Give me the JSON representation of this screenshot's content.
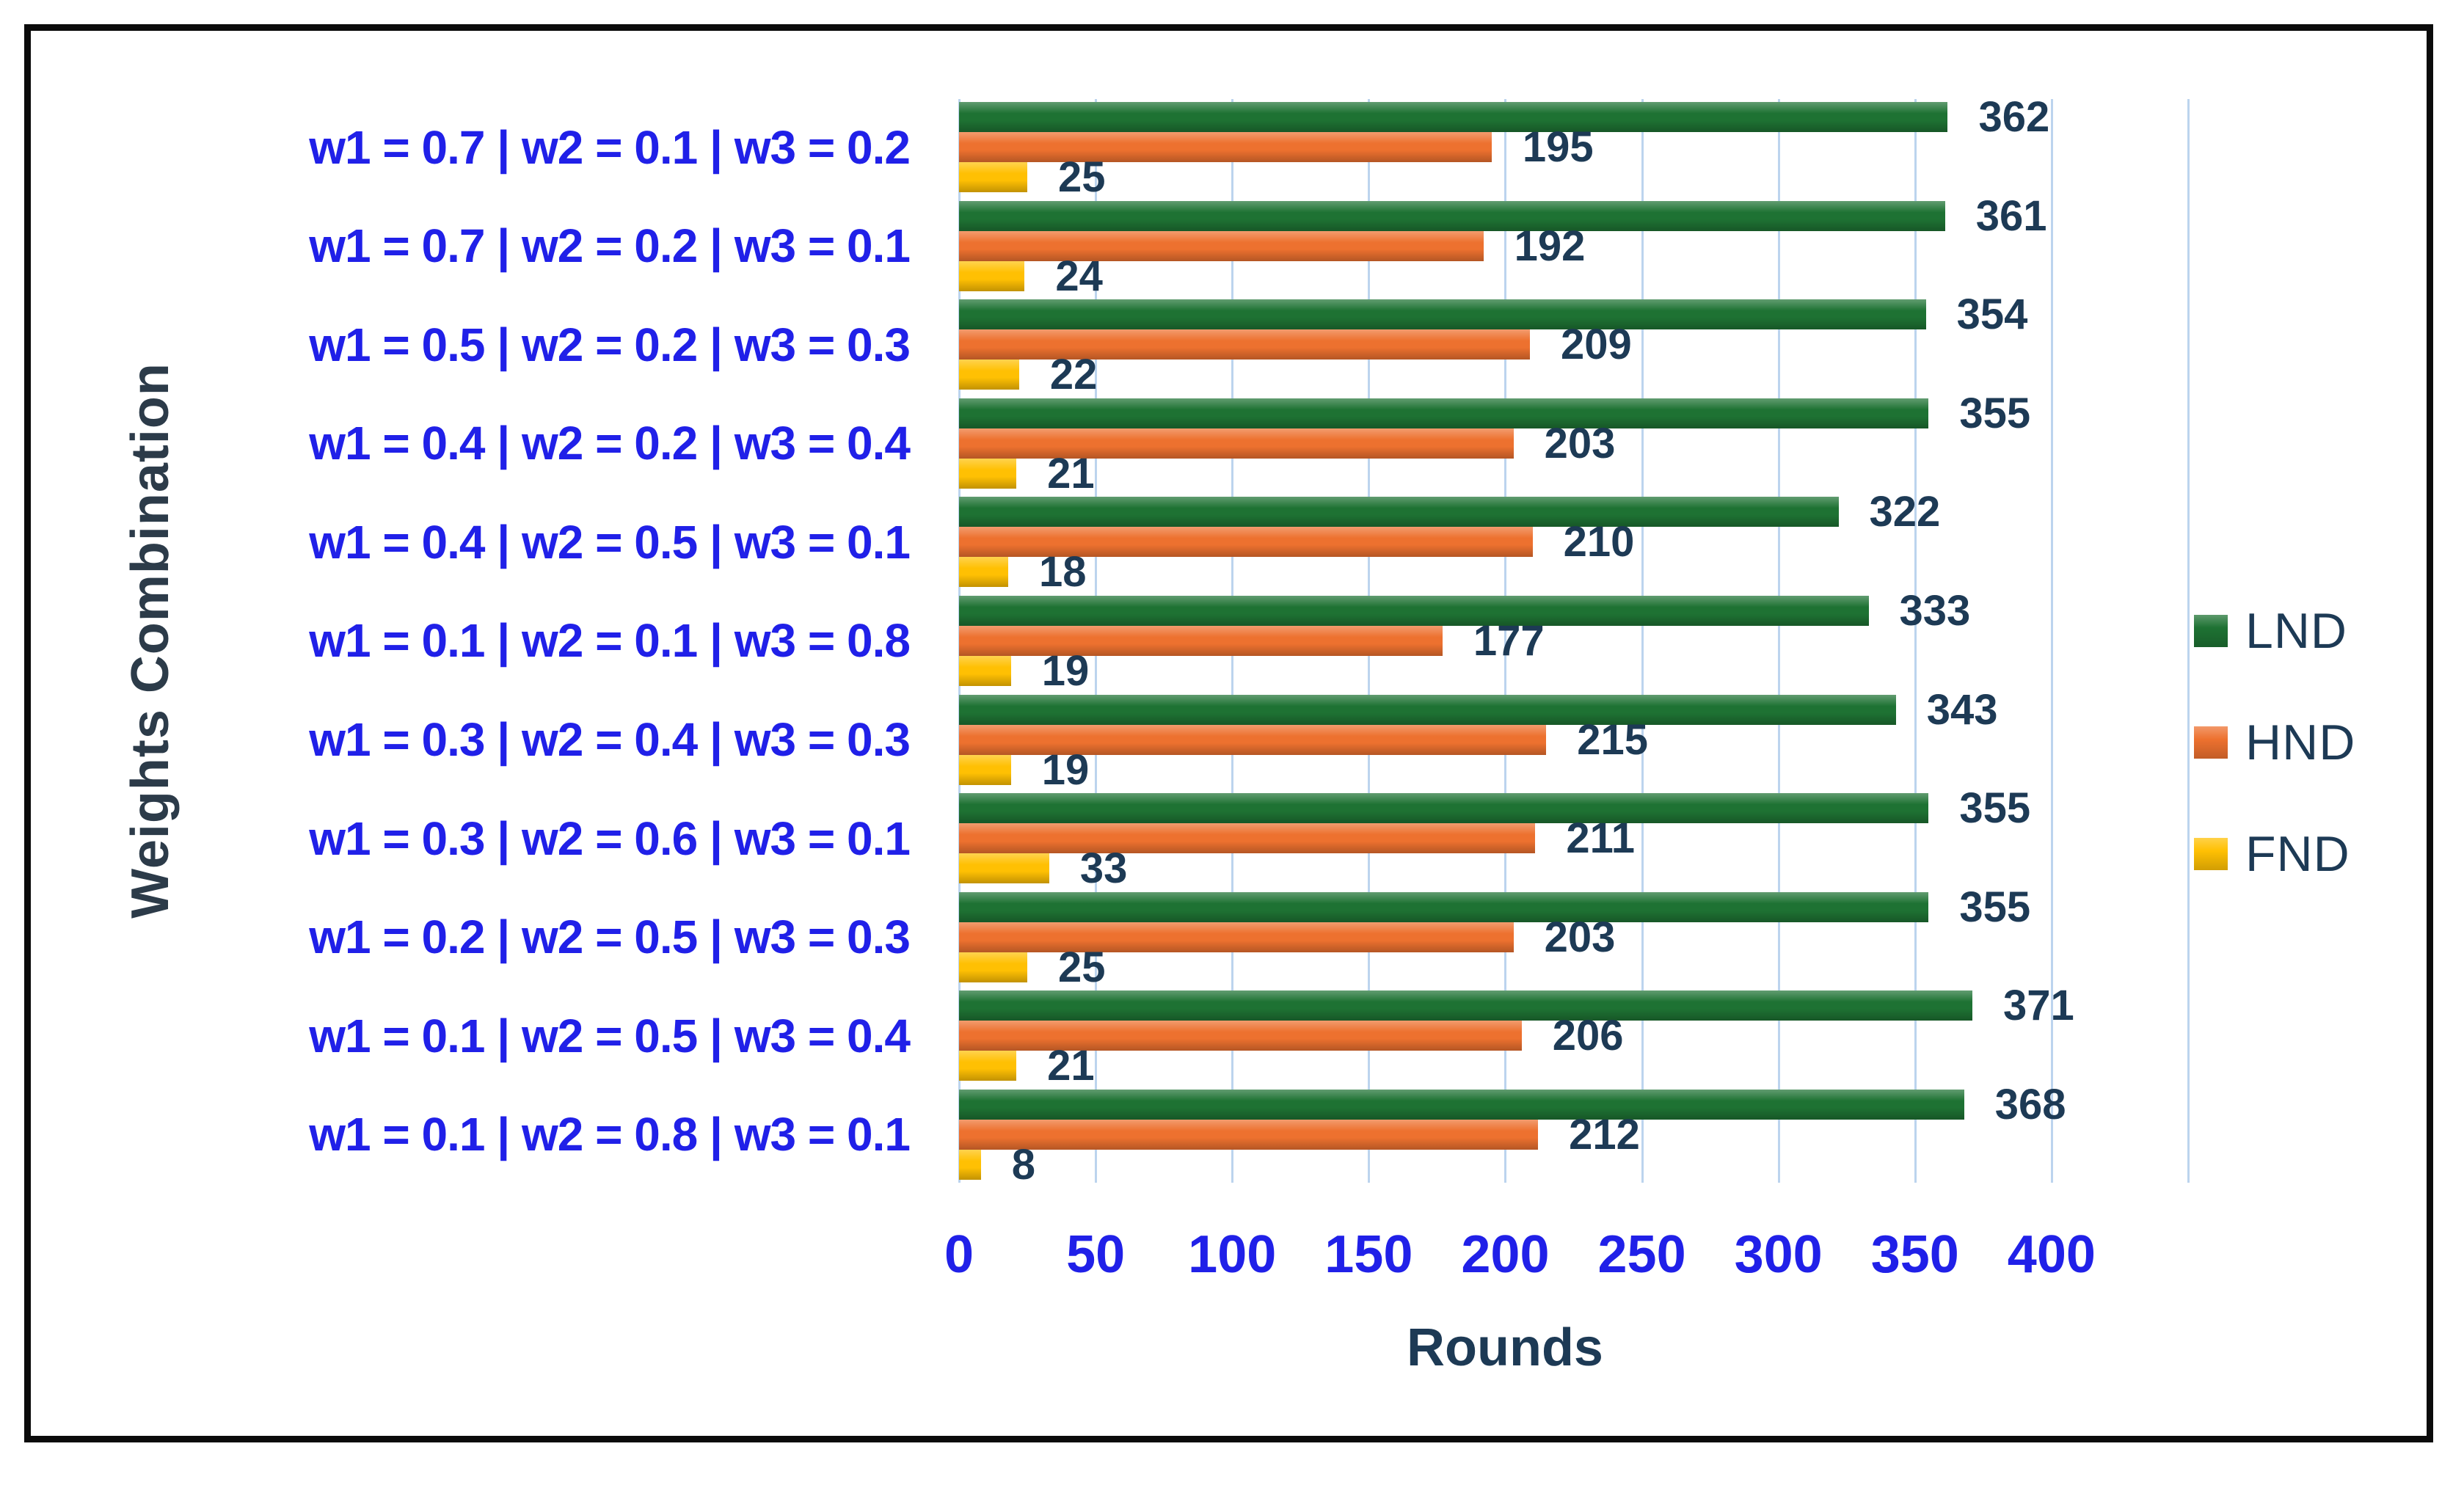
{
  "colors": {
    "category_text": "#2020e8",
    "tick_text": "#2020e8",
    "label_text": "#1d3a55",
    "axis_title_text": "#2c3b49",
    "grid": "#bcd4ee",
    "frame": "#0b0b0b",
    "background": "#ffffff"
  },
  "chart_data": {
    "type": "bar",
    "orientation": "horizontal",
    "title": "",
    "xlabel": "Rounds",
    "ylabel": "Weights Combination",
    "categories": [
      "w1 = 0.7 | w2 = 0.1 | w3 = 0.2",
      "w1 = 0.7 | w2 = 0.2 | w3 = 0.1",
      "w1 = 0.5 | w2 = 0.2 | w3 = 0.3",
      "w1 = 0.4 | w2 = 0.2 | w3 = 0.4",
      "w1 = 0.4 | w2 = 0.5 | w3 = 0.1",
      "w1 = 0.1 | w2 = 0.1 | w3 = 0.8",
      "w1 = 0.3 | w2 = 0.4 | w3 = 0.3",
      "w1 = 0.3 | w2 = 0.6 | w3 = 0.1",
      "w1 = 0.2 | w2 = 0.5 | w3 = 0.3",
      "w1 = 0.1 | w2 = 0.5 | w3 = 0.4",
      "w1 = 0.1 | w2 = 0.8 | w3 = 0.1"
    ],
    "series": [
      {
        "name": "LND",
        "color": "#1e7233",
        "values": [
          362,
          361,
          354,
          355,
          322,
          333,
          343,
          355,
          355,
          371,
          368
        ]
      },
      {
        "name": "HND",
        "color": "#ed712f",
        "values": [
          195,
          192,
          209,
          203,
          210,
          177,
          215,
          211,
          203,
          206,
          212
        ]
      },
      {
        "name": "FND",
        "color": "#ffc003",
        "values": [
          25,
          24,
          22,
          21,
          18,
          19,
          19,
          33,
          25,
          21,
          8
        ]
      }
    ],
    "x_ticks": [
      0,
      50,
      100,
      150,
      200,
      250,
      300,
      350,
      400
    ],
    "xlim": [
      0,
      450
    ],
    "labeled_axis_max": 400,
    "grid": true,
    "data_labels": true,
    "legend_position": "right"
  }
}
